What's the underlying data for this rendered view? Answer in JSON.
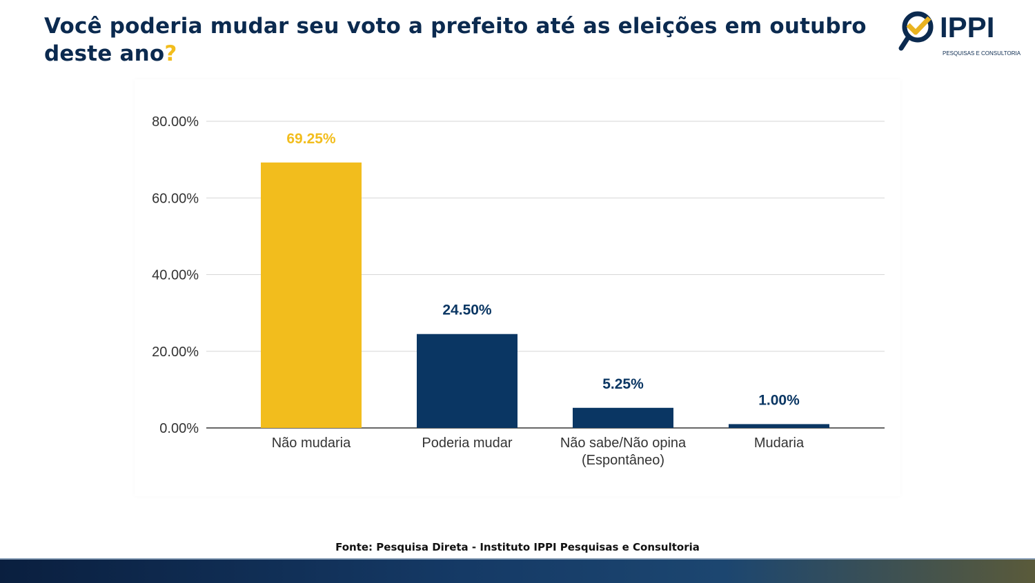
{
  "title": {
    "text": "Você poderia mudar seu voto a prefeito até as eleições em outubro deste ano",
    "mark": "?"
  },
  "logo": {
    "name": "IPPI",
    "tagline": "PESQUISAS E CONSULTORIA"
  },
  "source": "Fonte: Pesquisa Direta - Instituto IPPI Pesquisas e Consultoria",
  "colors": {
    "highlight": "#F2BD1D",
    "primary": "#0A3663",
    "title": "#0B2A4F"
  },
  "chart_data": {
    "type": "bar",
    "categories": [
      "Não mudaria",
      "Poderia mudar",
      "Não sabe/Não opina\n(Espontâneo)",
      "Mudaria"
    ],
    "values": [
      69.25,
      24.5,
      5.25,
      1.0
    ],
    "data_labels": [
      "69.25%",
      "24.50%",
      "5.25%",
      "1.00%"
    ],
    "bar_colors": [
      "#F2BD1D",
      "#0A3663",
      "#0A3663",
      "#0A3663"
    ],
    "label_colors": [
      "#F2BD1D",
      "#0A3663",
      "#0A3663",
      "#0A3663"
    ],
    "yticks": [
      0,
      20,
      40,
      60,
      80
    ],
    "ytick_labels": [
      "0.00%",
      "20.00%",
      "40.00%",
      "60.00%",
      "80.00%"
    ],
    "ylim": [
      0,
      80
    ],
    "grid": true,
    "title": "",
    "xlabel": "",
    "ylabel": ""
  }
}
